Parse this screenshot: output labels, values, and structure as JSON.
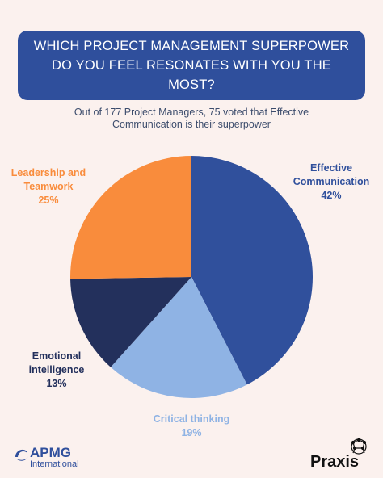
{
  "header": {
    "title_lines": [
      "WHICH PROJECT MANAGEMENT SUPERPOWER",
      "DO YOU FEEL RESONATES WITH YOU THE",
      "MOST?"
    ],
    "subtitle_lines": [
      "Out of 177 Project Managers, 75 voted that Effective",
      "Communication is their superpower"
    ]
  },
  "chart_data": {
    "type": "pie",
    "slices": [
      {
        "label_lines": [
          "Effective",
          "Communication"
        ],
        "value": 42,
        "value_label": "42%",
        "color": "#30509c",
        "label_color": "#30509c"
      },
      {
        "label_lines": [
          "Critical thinking"
        ],
        "value": 19,
        "value_label": "19%",
        "color": "#8fb3e4",
        "label_color": "#8fb3e4"
      },
      {
        "label_lines": [
          "Emotional",
          "intelligence"
        ],
        "value": 13,
        "value_label": "13%",
        "color": "#23305c",
        "label_color": "#23305c"
      },
      {
        "label_lines": [
          "Leadership and",
          "Teamwork"
        ],
        "value": 25,
        "value_label": "25%",
        "color": "#f98c3c",
        "label_color": "#f98c3c"
      }
    ]
  },
  "logos": {
    "apmg": {
      "name": "APMG",
      "subtext": "International",
      "color": "#2f4f9c"
    },
    "praxis": {
      "name": "Praxis",
      "color": "#111111"
    }
  }
}
